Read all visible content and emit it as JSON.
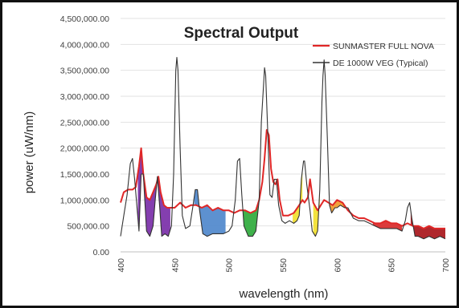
{
  "chart_data": {
    "type": "line",
    "title": "Spectral Output",
    "xlabel": "wavelength (nm)",
    "ylabel": "power (uW/nm)",
    "xlim": [
      400,
      700
    ],
    "ylim": [
      0,
      4500000
    ],
    "x_ticks": [
      "400",
      "450",
      "500",
      "550",
      "600",
      "650",
      "700"
    ],
    "y_ticks": [
      "0.00",
      "500,000.00",
      "1,000,000.00",
      "1,500,000.00",
      "2,000,000.00",
      "2,500,000.00",
      "3,000,000.00",
      "3,500,000.00",
      "4,000,000.00",
      "4,500,000.00"
    ],
    "legend_position": "top-right",
    "grid": "horizontal",
    "series": [
      {
        "name": "SUNMASTER FULL NOVA",
        "color": "#e02727",
        "points": [
          [
            400,
            950000
          ],
          [
            403,
            1150000
          ],
          [
            407,
            1200000
          ],
          [
            411,
            1200000
          ],
          [
            414,
            1250000
          ],
          [
            417,
            1650000
          ],
          [
            419,
            2000000
          ],
          [
            421,
            1500000
          ],
          [
            424,
            1050000
          ],
          [
            427,
            1000000
          ],
          [
            430,
            1150000
          ],
          [
            433,
            1300000
          ],
          [
            435,
            1450000
          ],
          [
            437,
            1150000
          ],
          [
            440,
            900000
          ],
          [
            443,
            850000
          ],
          [
            447,
            850000
          ],
          [
            450,
            850000
          ],
          [
            455,
            950000
          ],
          [
            460,
            850000
          ],
          [
            465,
            900000
          ],
          [
            470,
            900000
          ],
          [
            475,
            850000
          ],
          [
            480,
            900000
          ],
          [
            485,
            800000
          ],
          [
            490,
            850000
          ],
          [
            495,
            800000
          ],
          [
            500,
            800000
          ],
          [
            505,
            750000
          ],
          [
            510,
            800000
          ],
          [
            515,
            800000
          ],
          [
            520,
            750000
          ],
          [
            525,
            800000
          ],
          [
            528,
            1000000
          ],
          [
            531,
            1350000
          ],
          [
            533,
            1800000
          ],
          [
            535,
            2350000
          ],
          [
            537,
            2250000
          ],
          [
            539,
            1600000
          ],
          [
            541,
            1350000
          ],
          [
            543,
            1300000
          ],
          [
            545,
            1400000
          ],
          [
            547,
            1000000
          ],
          [
            550,
            700000
          ],
          [
            555,
            700000
          ],
          [
            560,
            750000
          ],
          [
            565,
            900000
          ],
          [
            568,
            1000000
          ],
          [
            570,
            950000
          ],
          [
            573,
            1050000
          ],
          [
            575,
            1400000
          ],
          [
            578,
            950000
          ],
          [
            582,
            800000
          ],
          [
            585,
            900000
          ],
          [
            588,
            1000000
          ],
          [
            592,
            950000
          ],
          [
            596,
            900000
          ],
          [
            600,
            1000000
          ],
          [
            605,
            950000
          ],
          [
            610,
            800000
          ],
          [
            615,
            700000
          ],
          [
            620,
            650000
          ],
          [
            625,
            650000
          ],
          [
            630,
            600000
          ],
          [
            635,
            550000
          ],
          [
            640,
            550000
          ],
          [
            645,
            600000
          ],
          [
            650,
            550000
          ],
          [
            655,
            550000
          ],
          [
            660,
            500000
          ],
          [
            665,
            550000
          ],
          [
            670,
            500000
          ],
          [
            675,
            500000
          ],
          [
            680,
            450000
          ],
          [
            685,
            500000
          ],
          [
            690,
            450000
          ],
          [
            695,
            450000
          ],
          [
            700,
            450000
          ]
        ]
      },
      {
        "name": "DE 1000W VEG (Typical)",
        "color": "#333333",
        "points": [
          [
            400,
            300000
          ],
          [
            403,
            700000
          ],
          [
            406,
            1100000
          ],
          [
            409,
            1700000
          ],
          [
            411,
            1800000
          ],
          [
            413,
            1400000
          ],
          [
            415,
            900000
          ],
          [
            417,
            400000
          ],
          [
            419,
            1500000
          ],
          [
            421,
            1500000
          ],
          [
            424,
            400000
          ],
          [
            427,
            300000
          ],
          [
            430,
            500000
          ],
          [
            432,
            1000000
          ],
          [
            434,
            1450000
          ],
          [
            436,
            900000
          ],
          [
            438,
            300000
          ],
          [
            441,
            350000
          ],
          [
            444,
            300000
          ],
          [
            447,
            500000
          ],
          [
            449,
            1500000
          ],
          [
            451,
            3500000
          ],
          [
            452,
            3750000
          ],
          [
            453,
            3500000
          ],
          [
            455,
            2000000
          ],
          [
            457,
            700000
          ],
          [
            460,
            450000
          ],
          [
            464,
            500000
          ],
          [
            467,
            900000
          ],
          [
            469,
            1200000
          ],
          [
            471,
            1200000
          ],
          [
            473,
            800000
          ],
          [
            476,
            350000
          ],
          [
            480,
            300000
          ],
          [
            485,
            350000
          ],
          [
            490,
            350000
          ],
          [
            495,
            350000
          ],
          [
            500,
            400000
          ],
          [
            503,
            500000
          ],
          [
            506,
            1000000
          ],
          [
            508,
            1750000
          ],
          [
            510,
            1800000
          ],
          [
            512,
            1100000
          ],
          [
            514,
            500000
          ],
          [
            518,
            300000
          ],
          [
            522,
            300000
          ],
          [
            525,
            400000
          ],
          [
            528,
            1000000
          ],
          [
            530,
            2500000
          ],
          [
            532,
            3200000
          ],
          [
            533,
            3550000
          ],
          [
            534,
            3400000
          ],
          [
            536,
            2300000
          ],
          [
            538,
            1100000
          ],
          [
            540,
            1050000
          ],
          [
            542,
            1400000
          ],
          [
            544,
            1400000
          ],
          [
            546,
            900000
          ],
          [
            549,
            600000
          ],
          [
            552,
            550000
          ],
          [
            556,
            600000
          ],
          [
            560,
            550000
          ],
          [
            563,
            600000
          ],
          [
            565,
            700000
          ],
          [
            567,
            1400000
          ],
          [
            569,
            1750000
          ],
          [
            570,
            1750000
          ],
          [
            572,
            1300000
          ],
          [
            575,
            800000
          ],
          [
            577,
            400000
          ],
          [
            580,
            300000
          ],
          [
            582,
            400000
          ],
          [
            584,
            1200000
          ],
          [
            586,
            2900000
          ],
          [
            587,
            3400000
          ],
          [
            588,
            3700000
          ],
          [
            589,
            3400000
          ],
          [
            591,
            2200000
          ],
          [
            593,
            900000
          ],
          [
            595,
            750000
          ],
          [
            598,
            850000
          ],
          [
            600,
            850000
          ],
          [
            603,
            900000
          ],
          [
            607,
            850000
          ],
          [
            610,
            850000
          ],
          [
            615,
            650000
          ],
          [
            620,
            600000
          ],
          [
            625,
            600000
          ],
          [
            630,
            550000
          ],
          [
            635,
            500000
          ],
          [
            640,
            450000
          ],
          [
            645,
            450000
          ],
          [
            650,
            450000
          ],
          [
            655,
            450000
          ],
          [
            660,
            400000
          ],
          [
            663,
            600000
          ],
          [
            665,
            850000
          ],
          [
            667,
            950000
          ],
          [
            669,
            650000
          ],
          [
            672,
            300000
          ],
          [
            675,
            300000
          ],
          [
            680,
            250000
          ],
          [
            685,
            300000
          ],
          [
            690,
            250000
          ],
          [
            695,
            300000
          ],
          [
            700,
            250000
          ]
        ]
      }
    ]
  }
}
